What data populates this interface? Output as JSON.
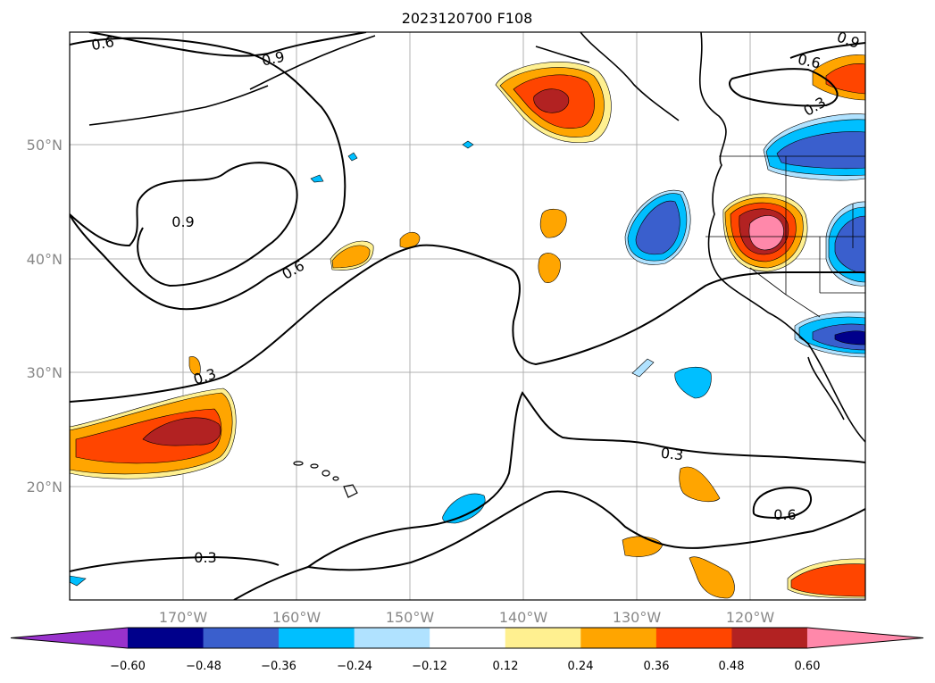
{
  "title": "2023120700 F108",
  "lat_ticks": [
    "50°N",
    "40°N",
    "30°N",
    "20°N"
  ],
  "lon_ticks": [
    "170°W",
    "160°W",
    "150°W",
    "140°W",
    "130°W",
    "120°W"
  ],
  "contour_labels": [
    "0.6",
    "0.9",
    "0.9",
    "0.6",
    "0.3",
    "0.3",
    "0.3",
    "0.6",
    "0.6",
    "0.3",
    "0.9"
  ],
  "colorbar": {
    "ticks": [
      "−0.60",
      "−0.48",
      "−0.36",
      "−0.24",
      "−0.12",
      "0.12",
      "0.24",
      "0.36",
      "0.48",
      "0.60"
    ],
    "colors": [
      "#9932cc",
      "#00008b",
      "#3a5fcd",
      "#00bfff",
      "#b0e2ff",
      "#ffffff",
      "#fff090",
      "#ffa500",
      "#ff4500",
      "#b22222",
      "#ff88aa"
    ]
  }
}
